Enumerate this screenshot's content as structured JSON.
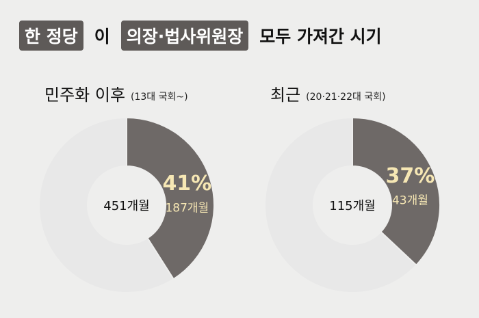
{
  "title": [
    {
      "text": "한 정당",
      "highlight": true
    },
    {
      "text": "이",
      "highlight": false
    },
    {
      "text": "의장·법사위원장",
      "highlight": true
    },
    {
      "text": "모두 가져간 시기",
      "highlight": false
    }
  ],
  "chart_data": [
    {
      "type": "donut",
      "title": "민주화 이후",
      "subtitle": "(13대 국회~)",
      "center_label": "451개월",
      "categories": [
        null,
        null
      ],
      "values": [
        41,
        59
      ],
      "value_labels": [
        "41%",
        null
      ],
      "month_labels": [
        "187개월",
        null
      ],
      "colors": [
        "#6e6967",
        "#e8e8e8"
      ]
    },
    {
      "type": "donut",
      "title": "최근",
      "subtitle": "(20·21·22대 국회)",
      "center_label": "115개월",
      "categories": [
        null,
        null
      ],
      "values": [
        37,
        63
      ],
      "value_labels": [
        "37%",
        null
      ],
      "month_labels": [
        "43개월",
        null
      ],
      "colors": [
        "#6e6967",
        "#e8e8e8"
      ]
    }
  ]
}
